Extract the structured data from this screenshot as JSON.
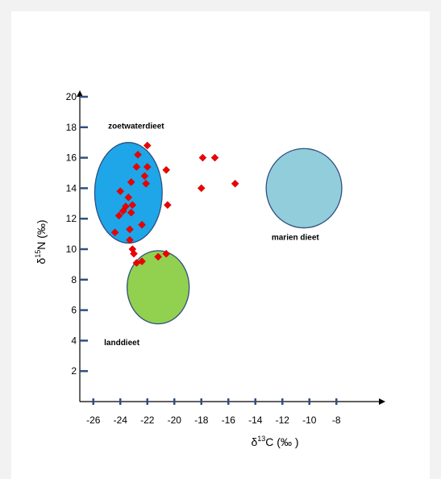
{
  "chart_data": {
    "type": "scatter",
    "xlabel": {
      "prefix": "δ",
      "sup": "13",
      "main": "C (‰ )"
    },
    "ylabel": {
      "prefix": "δ",
      "sup": "15",
      "main": "N (‰)"
    },
    "xlim": [
      -27,
      -3
    ],
    "ylim": [
      0,
      22
    ],
    "x_ticks": [
      -26,
      -24,
      -22,
      -20,
      -18,
      -16,
      -14,
      -12,
      -10,
      -8
    ],
    "y_ticks": [
      2,
      4,
      6,
      8,
      10,
      12,
      14,
      16,
      18,
      20
    ],
    "regions": [
      {
        "label": "zoetwaterdieet",
        "cx": -23.4,
        "cy": 13.7,
        "rx": 2.5,
        "ry": 3.3,
        "color": "#1ea6e8"
      },
      {
        "label": "landdieet",
        "cx": -21.2,
        "cy": 7.5,
        "rx": 2.3,
        "ry": 2.4,
        "color": "#92d050"
      },
      {
        "label": "marien dieet",
        "cx": -10.4,
        "cy": 14.0,
        "rx": 2.8,
        "ry": 2.6,
        "color": "#92cddc"
      }
    ],
    "points": [
      {
        "x": -22.0,
        "y": 16.8
      },
      {
        "x": -22.7,
        "y": 16.2
      },
      {
        "x": -22.8,
        "y": 15.4
      },
      {
        "x": -22.0,
        "y": 15.4
      },
      {
        "x": -22.2,
        "y": 14.8
      },
      {
        "x": -22.1,
        "y": 14.3
      },
      {
        "x": -23.2,
        "y": 14.4
      },
      {
        "x": -24.0,
        "y": 13.8
      },
      {
        "x": -23.4,
        "y": 13.4
      },
      {
        "x": -23.1,
        "y": 12.9
      },
      {
        "x": -23.6,
        "y": 12.8
      },
      {
        "x": -23.8,
        "y": 12.5
      },
      {
        "x": -23.2,
        "y": 12.4
      },
      {
        "x": -24.1,
        "y": 12.2
      },
      {
        "x": -22.4,
        "y": 11.6
      },
      {
        "x": -24.4,
        "y": 11.1
      },
      {
        "x": -23.3,
        "y": 11.3
      },
      {
        "x": -23.3,
        "y": 10.6
      },
      {
        "x": -23.1,
        "y": 10.0
      },
      {
        "x": -23.0,
        "y": 9.7
      },
      {
        "x": -22.8,
        "y": 9.1
      },
      {
        "x": -22.4,
        "y": 9.2
      },
      {
        "x": -21.2,
        "y": 9.5
      },
      {
        "x": -20.6,
        "y": 9.7
      },
      {
        "x": -20.6,
        "y": 15.2
      },
      {
        "x": -20.5,
        "y": 12.9
      },
      {
        "x": -17.9,
        "y": 16.0
      },
      {
        "x": -17.0,
        "y": 16.0
      },
      {
        "x": -18.0,
        "y": 14.0
      },
      {
        "x": -15.5,
        "y": 14.3
      }
    ],
    "point_color": "#ee0000"
  }
}
